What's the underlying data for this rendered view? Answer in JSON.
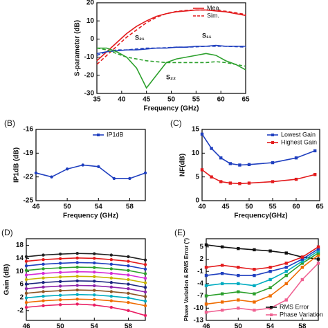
{
  "chart_data": [
    {
      "type": "line",
      "xlabel": "Frequency (GHz)",
      "ylabel": "S-parameter (dB)",
      "x": [
        35,
        37,
        39,
        41,
        43,
        45,
        47,
        49,
        51,
        53,
        55,
        57,
        59,
        61,
        63,
        65
      ],
      "xlim": [
        35,
        65
      ],
      "xticks": [
        35,
        40,
        45,
        50,
        55,
        60,
        65
      ],
      "ylim": [
        -30,
        20
      ],
      "yticks": [
        -30,
        -20,
        -10,
        0,
        10,
        20
      ],
      "legend": "upper right",
      "annotations": [
        "S₂₁",
        "S₁₁",
        "S₂₂"
      ],
      "series": [
        {
          "name": "Mea.",
          "color": "#e31a1c",
          "values": [
            -12,
            -7,
            -2,
            3,
            7,
            10,
            12.5,
            14,
            15,
            15.5,
            16,
            16,
            15.5,
            15,
            14,
            13
          ]
        },
        {
          "name": "Sim.",
          "color": "#e31a1c",
          "dashed": true,
          "values": [
            -14,
            -9,
            -4,
            1,
            5,
            9,
            12,
            14,
            15.2,
            15.8,
            16,
            16,
            15.8,
            15.3,
            14.5,
            13.5
          ]
        },
        {
          "color": "#1f3fbf",
          "values": [
            -8,
            -7,
            -6.5,
            -6,
            -6,
            -5.5,
            -5,
            -5,
            -4.5,
            -4.5,
            -4,
            -4,
            -3.5,
            -4,
            -4,
            -4
          ]
        },
        {
          "color": "#1f3fbf",
          "dashed": true,
          "values": [
            -9,
            -7,
            -6,
            -6,
            -5.5,
            -5,
            -5,
            -4.8,
            -4.5,
            -4.5,
            -4.3,
            -4,
            -4,
            -4,
            -4.2,
            -4.5
          ]
        },
        {
          "color": "#2ca02c",
          "values": [
            -5,
            -5,
            -7,
            -10,
            -16,
            -27,
            -20,
            -13,
            -11,
            -10,
            -9,
            -8,
            -9,
            -12,
            -14,
            -17
          ]
        },
        {
          "color": "#2ca02c",
          "dashed": true,
          "values": [
            -5,
            -6,
            -8,
            -10,
            -11,
            -12,
            -12.5,
            -13,
            -13,
            -13,
            -13,
            -13,
            -12.5,
            -13,
            -14,
            -15
          ]
        }
      ]
    },
    {
      "type": "line",
      "panel": "(B)",
      "xlabel": "Frequency (GHz)",
      "ylabel": "IP1dB (dB)",
      "x": [
        46,
        48,
        50,
        52,
        54,
        56,
        58,
        60
      ],
      "xlim": [
        46,
        60
      ],
      "xticks": [
        46,
        50,
        54,
        58
      ],
      "ylim": [
        -25,
        -16
      ],
      "yticks": [
        -25,
        -22,
        -19,
        -16
      ],
      "legend": "upper right",
      "marker": "circle",
      "series": [
        {
          "name": "IP1dB",
          "color": "#1f3fbf",
          "values": [
            -21.5,
            -22,
            -21,
            -20.5,
            -20.7,
            -22.2,
            -22.2,
            -21.5
          ]
        }
      ]
    },
    {
      "type": "line",
      "panel": "(C)",
      "xlabel": "Frequency(GHz)",
      "ylabel": "NF(dB)",
      "x": [
        40,
        42,
        44,
        46,
        48,
        50,
        55,
        60,
        64
      ],
      "xlim": [
        40,
        65
      ],
      "xticks": [
        40,
        45,
        50,
        55,
        60,
        65
      ],
      "ylim": [
        0,
        15
      ],
      "yticks": [
        0,
        5,
        10,
        15
      ],
      "legend": "upper right",
      "marker": "square",
      "series": [
        {
          "name": "Lowest Gain",
          "color": "#1f3fbf",
          "values": [
            14,
            11,
            9,
            7.8,
            7.5,
            7.6,
            8,
            9,
            10.5
          ]
        },
        {
          "name": "Highest Gain",
          "color": "#e31a1c",
          "values": [
            6.5,
            5,
            4,
            3.7,
            3.6,
            3.7,
            4,
            4.5,
            5.5
          ]
        }
      ]
    },
    {
      "type": "line",
      "panel": "(D)",
      "ylabel": "Gain (dB)",
      "x": [
        46,
        48,
        50,
        52,
        54,
        56,
        58,
        60
      ],
      "xlim": [
        46,
        60
      ],
      "xticks": [
        46,
        50,
        54,
        58
      ],
      "ylim": [
        -5,
        20
      ],
      "yticks": [
        -2,
        2,
        6,
        10,
        14,
        18
      ],
      "marker": "circle",
      "series": [
        {
          "color": "#222222",
          "values": [
            14.5,
            15,
            15.3,
            15.5,
            15.4,
            15,
            14.5,
            13.5
          ]
        },
        {
          "color": "#e31a1c",
          "values": [
            13.1,
            13.6,
            13.9,
            14.1,
            14,
            13.6,
            13.1,
            12.1
          ]
        },
        {
          "color": "#1f3fbf",
          "values": [
            11.7,
            12.2,
            12.5,
            12.7,
            12.6,
            12.2,
            11.7,
            10.7
          ]
        },
        {
          "color": "#2ca02c",
          "values": [
            10.3,
            10.8,
            11.1,
            11.3,
            11.2,
            10.8,
            10.3,
            9.3
          ]
        },
        {
          "color": "#d62bd6",
          "values": [
            8.9,
            9.4,
            9.7,
            9.9,
            9.8,
            9.4,
            8.9,
            7.9
          ]
        },
        {
          "color": "#c8b400",
          "values": [
            7.5,
            8,
            8.3,
            8.5,
            8.4,
            8,
            7.5,
            6.5
          ]
        },
        {
          "color": "#1a237e",
          "values": [
            6.1,
            6.6,
            6.9,
            7.1,
            7,
            6.6,
            6.1,
            5.1
          ]
        },
        {
          "color": "#8e24aa",
          "values": [
            4.7,
            5.2,
            5.5,
            5.7,
            5.6,
            5.2,
            4.7,
            3.7
          ]
        },
        {
          "color": "#8d5524",
          "values": [
            3.3,
            3.8,
            4.1,
            4.3,
            4.2,
            3.8,
            3.3,
            2.3
          ]
        },
        {
          "color": "#00acc1",
          "values": [
            1.9,
            2.4,
            2.7,
            2.9,
            2.8,
            2.4,
            1.9,
            0.9
          ]
        },
        {
          "color": "#ef6c00",
          "values": [
            0.5,
            1,
            1.3,
            1.5,
            1.4,
            1,
            0.5,
            -0.5
          ]
        },
        {
          "color": "#e91e63",
          "values": [
            -1,
            -0.5,
            -0.2,
            0,
            -0.3,
            -1,
            -2,
            -3.5
          ]
        }
      ]
    },
    {
      "type": "line",
      "panel": "(E)",
      "ylabel": "Phase Variation & RMS Error (°)",
      "x": [
        46,
        48,
        50,
        52,
        54,
        56,
        58,
        60
      ],
      "xlim": [
        46,
        60
      ],
      "xticks": [
        46,
        50,
        54,
        58
      ],
      "ylim": [
        -13,
        7
      ],
      "yticks": [
        -13,
        -10,
        -7,
        -4,
        -1,
        2,
        5
      ],
      "legend": "lower right",
      "marker": "square",
      "series": [
        {
          "name": "RMS Error",
          "color": "#111111",
          "values": [
            5.5,
            5,
            4.6,
            4.3,
            4,
            3.5,
            2.5,
            2
          ]
        },
        {
          "name": "Phase Variation",
          "color": "#f06292",
          "values": [
            -11,
            -10.5,
            -10,
            -10.5,
            -10,
            -8,
            -3,
            1
          ]
        },
        {
          "color": "#ef6c00",
          "values": [
            -9,
            -8.5,
            -8,
            -8.5,
            -7,
            -4,
            0,
            3
          ]
        },
        {
          "color": "#2ca02c",
          "values": [
            -7,
            -6.5,
            -6,
            -6.5,
            -5,
            -2,
            1,
            3.5
          ]
        },
        {
          "color": "#00acc1",
          "values": [
            -4.5,
            -4,
            -4,
            -4.5,
            -3,
            -1,
            1.5,
            4
          ]
        },
        {
          "color": "#1f3fbf",
          "values": [
            -2,
            -1.5,
            -2,
            -2,
            -1,
            0,
            2,
            4.5
          ]
        },
        {
          "color": "#e31a1c",
          "values": [
            0,
            0.5,
            0,
            -0.5,
            0,
            1,
            2.5,
            5
          ]
        }
      ]
    }
  ]
}
